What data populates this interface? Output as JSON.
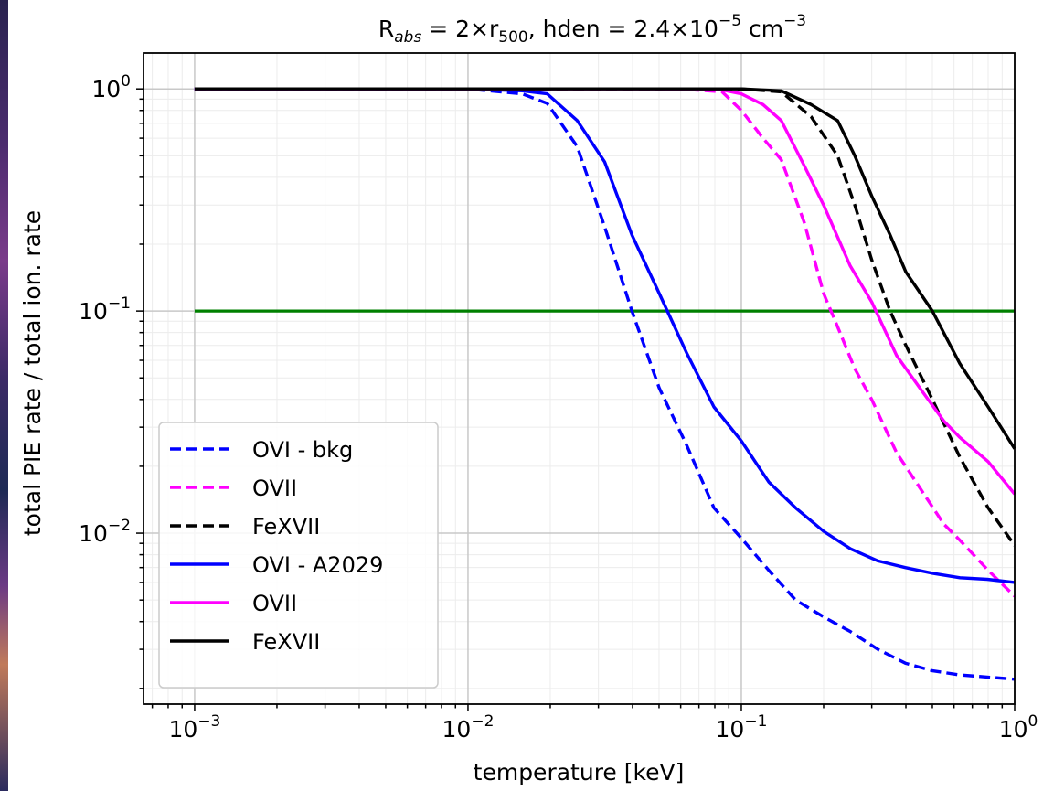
{
  "chart_data": {
    "type": "line",
    "title_parts": {
      "R": "R",
      "abs": "abs",
      "eq1": " = 2×r",
      "r500": "500",
      "mid": ", hden = 2.4×10",
      "exp": "−5",
      "unit": " cm",
      "unit_exp": "−3"
    },
    "xlabel": "temperature [keV]",
    "ylabel": "total PIE rate / total ion. rate",
    "x_scale": "log",
    "y_scale": "log",
    "xlim": [
      0.00065,
      1.0
    ],
    "ylim": [
      0.0017,
      1.45
    ],
    "grid": true,
    "legend_position": "lower-left",
    "x_ticks": [
      {
        "base": "10",
        "exp": "−3"
      },
      {
        "base": "10",
        "exp": "−2"
      },
      {
        "base": "10",
        "exp": "−1"
      },
      {
        "base": "10",
        "exp": "0"
      }
    ],
    "y_ticks": [
      {
        "base": "10",
        "exp": "0"
      },
      {
        "base": "10",
        "exp": "−1"
      },
      {
        "base": "10",
        "exp": "−2"
      }
    ],
    "threshold": {
      "y": 0.1,
      "color": "#008000"
    },
    "series": [
      {
        "name": "OVI - bkg",
        "color": "#0000ff",
        "dash": true,
        "x": [
          0.001,
          0.00158,
          0.00251,
          0.00398,
          0.0063,
          0.01,
          0.0158,
          0.0195,
          0.0251,
          0.0316,
          0.0398,
          0.0501,
          0.063,
          0.0794,
          0.1,
          0.126,
          0.158,
          0.2,
          0.251,
          0.316,
          0.398,
          0.501,
          0.631,
          0.794,
          1.0
        ],
        "y": [
          1.0,
          1.0,
          1.0,
          1.0,
          1.0,
          1.0,
          0.95,
          0.86,
          0.55,
          0.24,
          0.1,
          0.045,
          0.025,
          0.013,
          0.0095,
          0.0068,
          0.005,
          0.0042,
          0.0036,
          0.003,
          0.0026,
          0.0024,
          0.0023,
          0.00225,
          0.0022
        ]
      },
      {
        "name": "OVII",
        "color": "#ff00ff",
        "dash": true,
        "x": [
          0.001,
          0.01,
          0.03,
          0.06,
          0.085,
          0.1,
          0.12,
          0.14,
          0.17,
          0.2,
          0.225,
          0.26,
          0.3,
          0.37,
          0.45,
          0.55,
          0.63,
          0.8,
          1.0
        ],
        "y": [
          1.0,
          1.0,
          1.0,
          1.0,
          0.97,
          0.8,
          0.6,
          0.48,
          0.25,
          0.12,
          0.085,
          0.055,
          0.04,
          0.023,
          0.016,
          0.011,
          0.0093,
          0.0068,
          0.0052
        ]
      },
      {
        "name": "FeXVII",
        "color": "#000000",
        "dash": true,
        "x": [
          0.001,
          0.01,
          0.05,
          0.1,
          0.14,
          0.18,
          0.225,
          0.26,
          0.3,
          0.35,
          0.4,
          0.5,
          0.63,
          0.8,
          1.0
        ],
        "y": [
          1.0,
          1.0,
          1.0,
          1.0,
          0.97,
          0.75,
          0.5,
          0.3,
          0.17,
          0.1,
          0.07,
          0.04,
          0.022,
          0.013,
          0.0088
        ]
      },
      {
        "name": "OVI - A2029",
        "color": "#0000ff",
        "dash": false,
        "x": [
          0.001,
          0.00158,
          0.00251,
          0.00398,
          0.0063,
          0.01,
          0.0158,
          0.0195,
          0.0251,
          0.0316,
          0.0398,
          0.0501,
          0.063,
          0.0794,
          0.1,
          0.126,
          0.158,
          0.2,
          0.251,
          0.316,
          0.398,
          0.501,
          0.631,
          0.794,
          1.0
        ],
        "y": [
          1.0,
          1.0,
          1.0,
          1.0,
          1.0,
          1.0,
          0.98,
          0.95,
          0.72,
          0.47,
          0.22,
          0.12,
          0.065,
          0.037,
          0.026,
          0.017,
          0.013,
          0.0102,
          0.0085,
          0.0075,
          0.007,
          0.0066,
          0.0063,
          0.0062,
          0.006
        ]
      },
      {
        "name": "OVII",
        "color": "#ff00ff",
        "dash": false,
        "x": [
          0.001,
          0.01,
          0.05,
          0.085,
          0.1,
          0.12,
          0.14,
          0.17,
          0.2,
          0.25,
          0.3,
          0.37,
          0.45,
          0.55,
          0.63,
          0.8,
          1.0
        ],
        "y": [
          1.0,
          1.0,
          1.0,
          0.99,
          0.95,
          0.85,
          0.72,
          0.45,
          0.3,
          0.16,
          0.11,
          0.063,
          0.045,
          0.032,
          0.027,
          0.021,
          0.015
        ]
      },
      {
        "name": "FeXVII",
        "color": "#000000",
        "dash": false,
        "x": [
          0.001,
          0.01,
          0.05,
          0.1,
          0.14,
          0.18,
          0.225,
          0.26,
          0.3,
          0.35,
          0.4,
          0.5,
          0.63,
          0.8,
          1.0
        ],
        "y": [
          1.0,
          1.0,
          1.0,
          1.0,
          0.98,
          0.85,
          0.72,
          0.5,
          0.33,
          0.22,
          0.15,
          0.1,
          0.058,
          0.037,
          0.024
        ]
      }
    ]
  }
}
